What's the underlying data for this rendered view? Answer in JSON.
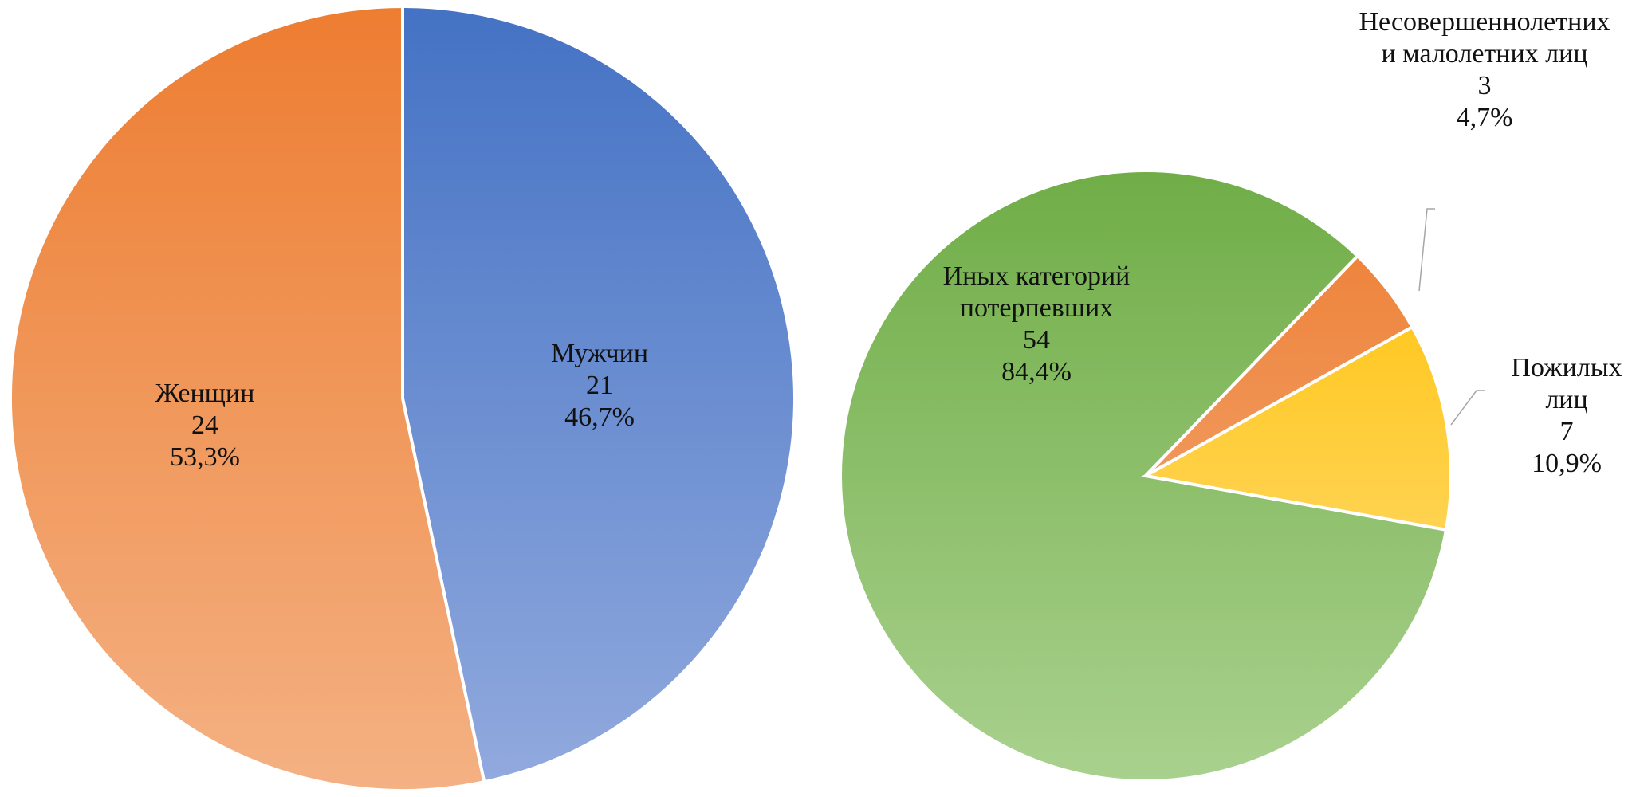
{
  "chart_data": [
    {
      "type": "pie",
      "title": "",
      "slices": [
        {
          "label": "Мужчин",
          "value": 21,
          "percent": "46,7%",
          "color_top": "#4472C4",
          "color_bottom": "#92AADE"
        },
        {
          "label": "Женщин",
          "value": 24,
          "percent": "53,3%",
          "color_top": "#ED7D31",
          "color_bottom": "#F4B183"
        }
      ],
      "start": "12 o'clock",
      "direction": "clockwise",
      "data_labels": "inside"
    },
    {
      "type": "pie",
      "title": "",
      "slices": [
        {
          "label_lines": [
            "Иных категорий",
            "потерпевших"
          ],
          "value": 54,
          "percent": "84,4%",
          "color_top": "#70AD47",
          "color_bottom": "#A9D18E"
        },
        {
          "label_lines": [
            "Несовершеннолетних",
            "и малолетних лиц"
          ],
          "value": 3,
          "percent": "4,7%",
          "color_top": "#ED7D31",
          "color_bottom": "#F4B183"
        },
        {
          "label_lines": [
            "Пожилых",
            "лиц"
          ],
          "value": 7,
          "percent": "10,9%",
          "color_top": "#FFC000",
          "color_bottom": "#FFE08A"
        }
      ],
      "data_labels": "inside and outside with leader lines"
    }
  ]
}
